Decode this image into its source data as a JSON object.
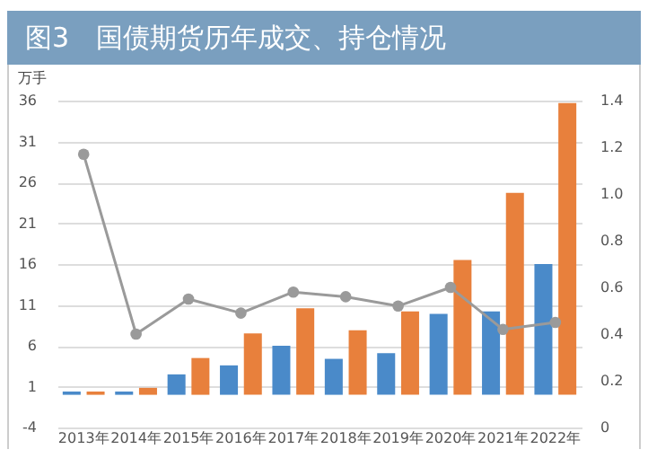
{
  "chart_data": {
    "type": "bar",
    "title": "图3　国债期货历年成交、持仓情况",
    "ylabel": "万手",
    "categories": [
      "2013年",
      "2014年",
      "2015年",
      "2016年",
      "2017年",
      "2018年",
      "2019年",
      "2020年",
      "2021年",
      "2022年"
    ],
    "series": [
      {
        "color": "#4a8ac9",
        "values": [
          0.4,
          0.4,
          2.5,
          3.6,
          6.0,
          4.4,
          5.1,
          9.9,
          10.2,
          16.0
        ]
      },
      {
        "color": "#e8803c",
        "values": [
          0.4,
          0.85,
          4.5,
          7.5,
          10.6,
          7.9,
          10.2,
          16.5,
          24.7,
          35.7
        ]
      },
      {
        "type": "line",
        "axis": "y2",
        "color": "#9a9a9a",
        "marker": "circle",
        "values": [
          1.17,
          0.4,
          0.55,
          0.49,
          0.58,
          0.56,
          0.52,
          0.6,
          0.42,
          0.45
        ]
      }
    ],
    "ylim": [
      -4,
      36
    ],
    "yticks": [
      -4,
      1,
      6,
      11,
      16,
      21,
      26,
      31,
      36
    ],
    "y2lim": [
      0,
      1.4
    ],
    "y2ticks": [
      0,
      {
        "value": 0.2,
        "label": "0.2"
      },
      {
        "value": 0.4,
        "label": "0.4"
      },
      {
        "value": 0.6,
        "label": "0.6"
      },
      {
        "value": 0.8,
        "label": "0.8"
      },
      {
        "value": 1,
        "label": "1.0"
      },
      {
        "value": 1.2,
        "label": "1.2"
      },
      {
        "value": 1.4,
        "label": "1.4"
      }
    ],
    "grid": "y",
    "legend": false
  }
}
